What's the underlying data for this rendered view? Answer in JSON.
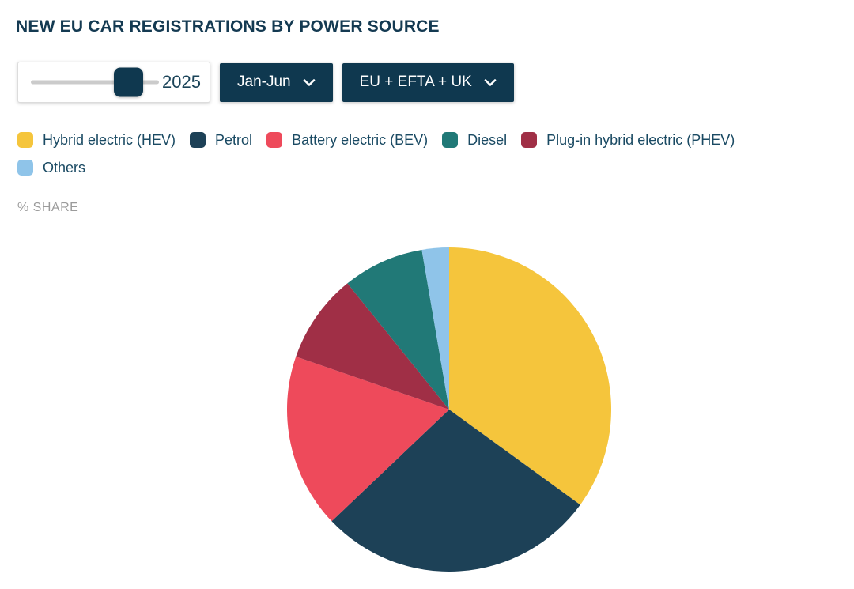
{
  "header": {
    "title": "NEW EU CAR REGISTRATIONS BY POWER SOURCE"
  },
  "controls": {
    "year_slider": {
      "value": "2025"
    },
    "period_dropdown": {
      "label": "Jan-Jun"
    },
    "region_dropdown": {
      "label": "EU + EFTA + UK"
    }
  },
  "axis": {
    "unit_label": "% SHARE"
  },
  "legend": {
    "items": [
      {
        "label": "Hybrid electric (HEV)",
        "color": "#F5C53C"
      },
      {
        "label": "Petrol",
        "color": "#1D4157"
      },
      {
        "label": "Battery electric (BEV)",
        "color": "#EE4A5B"
      },
      {
        "label": "Diesel",
        "color": "#217977"
      },
      {
        "label": "Plug-in hybrid electric (PHEV)",
        "color": "#A02F46"
      },
      {
        "label": "Others",
        "color": "#8FC4E9"
      }
    ]
  },
  "chart_data": {
    "type": "pie",
    "title": "NEW EU CAR REGISTRATIONS BY POWER SOURCE",
    "unit": "% share",
    "period": "Jan-Jun",
    "year": "2025",
    "region": "EU + EFTA + UK",
    "start_angle_deg": 0,
    "direction": "clockwise",
    "slices": [
      {
        "label": "Hybrid electric (HEV)",
        "value": 35.0,
        "color": "#F5C53C"
      },
      {
        "label": "Petrol",
        "value": 27.9,
        "color": "#1D4157"
      },
      {
        "label": "Battery electric (BEV)",
        "value": 17.4,
        "color": "#EE4A5B"
      },
      {
        "label": "Plug-in hybrid electric (PHEV)",
        "value": 8.9,
        "color": "#A02F46"
      },
      {
        "label": "Diesel",
        "value": 8.1,
        "color": "#217977"
      },
      {
        "label": "Others",
        "value": 2.7,
        "color": "#8FC4E9"
      }
    ],
    "legend_order": [
      "Hybrid electric (HEV)",
      "Petrol",
      "Battery electric (BEV)",
      "Diesel",
      "Plug-in hybrid electric (PHEV)",
      "Others"
    ]
  },
  "colors": {
    "accent_navy": "#0F384F",
    "title_navy": "#143A52",
    "legend_text_navy": "#1A4A63",
    "slider_track_gray": "#CBCBCB",
    "unit_label_gray": "#9B9B9B"
  }
}
